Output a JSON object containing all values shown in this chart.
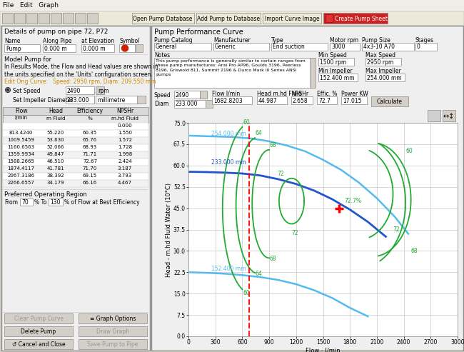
{
  "bg_color": "#d4d0c8",
  "plot_bg": "#ffffff",
  "grid_color": "#c8c8c8",
  "ylabel": "Head - m.hd Fluid Water (10°C)",
  "xlabel": "Flow - l/min",
  "ylim": [
    0.0,
    75.0
  ],
  "xlim": [
    0,
    3000
  ],
  "yticks": [
    0.0,
    7.5,
    15.0,
    22.5,
    30.0,
    37.5,
    45.0,
    52.5,
    60.0,
    67.5,
    75.0
  ],
  "xticks": [
    0,
    300,
    600,
    900,
    1200,
    1500,
    1800,
    2100,
    2400,
    2700,
    3000
  ],
  "red_line_x": 680,
  "operating_point_x": 1682.8,
  "operating_point_y": 44.987,
  "window_title": "Details of pump on pipe 72, P72",
  "pump_curve_title": "Pump Performance Curve",
  "table_data": [
    [
      813.424,
      55.22,
      60.35,
      1.55
    ],
    [
      1009.5459,
      53.63,
      65.76,
      1.572
    ],
    [
      1160.6563,
      52.066,
      68.93,
      1.728
    ],
    [
      1359.9934,
      49.847,
      71.71,
      1.998
    ],
    [
      1588.2665,
      46.51,
      72.67,
      2.424
    ],
    [
      1874.4117,
      41.781,
      71.7,
      3.187
    ],
    [
      2067.3186,
      38.392,
      69.15,
      3.793
    ],
    [
      2266.6557,
      34.179,
      66.16,
      4.467
    ]
  ],
  "notes": "This pump performance is generally similar to certain ranges from\nthese pump manufactures: Ansi Pro AP96, Goulds 3196, Peerless\n8196, Griswold 811, Summit 2196 & Durco Mark III Series ANSI\npumps"
}
